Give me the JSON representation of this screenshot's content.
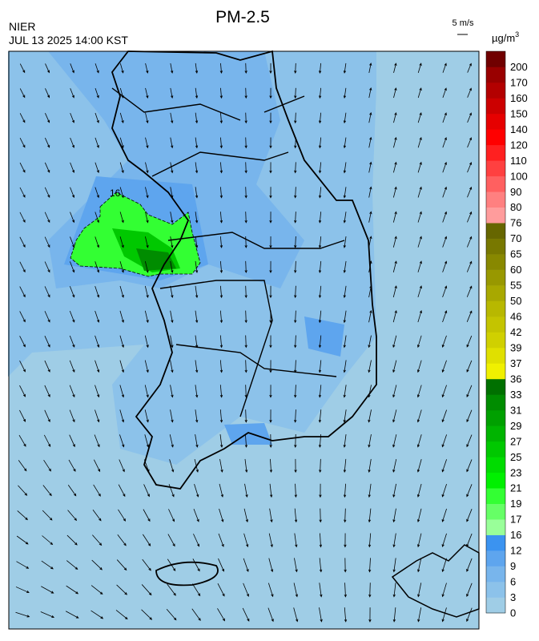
{
  "header": {
    "title": "PM-2.5",
    "source": "NIER",
    "datetime": "JUL 13 2025 14:00 KST",
    "wind_scale": "5 m/s",
    "unit": "µg/m",
    "unit_exponent": "3"
  },
  "map": {
    "contour_label": "16"
  },
  "colorbar": {
    "levels": [
      0,
      3,
      6,
      9,
      12,
      16,
      17,
      19,
      21,
      23,
      25,
      27,
      29,
      31,
      33,
      36,
      37,
      39,
      42,
      46,
      50,
      55,
      60,
      65,
      70,
      76,
      80,
      90,
      100,
      110,
      120,
      140,
      150,
      160,
      170,
      200
    ],
    "colors": [
      "#9fcde6",
      "#8cc2ea",
      "#78b5ec",
      "#5ea5ee",
      "#3b93f0",
      "#99ff99",
      "#66ff66",
      "#33ff33",
      "#00f000",
      "#00dc00",
      "#00c800",
      "#00b400",
      "#00a000",
      "#008c00",
      "#007000",
      "#f0f000",
      "#e0e000",
      "#d0d000",
      "#c4c400",
      "#b8b800",
      "#a8a800",
      "#989800",
      "#888800",
      "#787800",
      "#666600",
      "#ff9c9c",
      "#ff8080",
      "#ff6060",
      "#ff4040",
      "#ff2020",
      "#ff0000",
      "#e60000",
      "#cc0000",
      "#b30000",
      "#990000",
      "#700000"
    ]
  }
}
